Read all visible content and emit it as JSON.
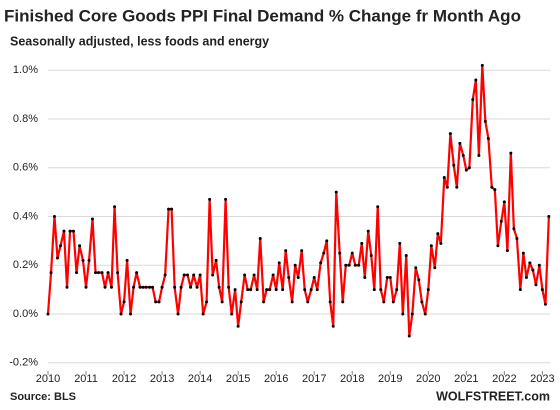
{
  "chart_data": {
    "type": "line",
    "title": "Finished Core Goods PPI Final Demand % Change fr Month Ago",
    "subtitle": "Seasonally adjusted, less foods and energy",
    "source": "Source: BLS",
    "watermark": "WOLFSTREET.com",
    "x": [
      2010,
      2010.08,
      2010.17,
      2010.25,
      2010.33,
      2010.42,
      2010.5,
      2010.58,
      2010.67,
      2010.75,
      2010.83,
      2010.92,
      2011,
      2011.08,
      2011.17,
      2011.25,
      2011.33,
      2011.42,
      2011.5,
      2011.58,
      2011.67,
      2011.75,
      2011.83,
      2011.92,
      2012,
      2012.08,
      2012.17,
      2012.25,
      2012.33,
      2012.42,
      2012.5,
      2012.58,
      2012.67,
      2012.75,
      2012.83,
      2012.92,
      2013,
      2013.08,
      2013.17,
      2013.25,
      2013.33,
      2013.42,
      2013.5,
      2013.58,
      2013.67,
      2013.75,
      2013.83,
      2013.92,
      2014,
      2014.08,
      2014.17,
      2014.25,
      2014.33,
      2014.42,
      2014.5,
      2014.58,
      2014.67,
      2014.75,
      2014.83,
      2014.92,
      2015,
      2015.08,
      2015.17,
      2015.25,
      2015.33,
      2015.42,
      2015.5,
      2015.58,
      2015.67,
      2015.75,
      2015.83,
      2015.92,
      2016,
      2016.08,
      2016.17,
      2016.25,
      2016.33,
      2016.42,
      2016.5,
      2016.58,
      2016.67,
      2016.75,
      2016.83,
      2016.92,
      2017,
      2017.08,
      2017.17,
      2017.25,
      2017.33,
      2017.42,
      2017.5,
      2017.58,
      2017.67,
      2017.75,
      2017.83,
      2017.92,
      2018,
      2018.08,
      2018.17,
      2018.25,
      2018.33,
      2018.42,
      2018.5,
      2018.58,
      2018.67,
      2018.75,
      2018.83,
      2018.92,
      2019,
      2019.08,
      2019.17,
      2019.25,
      2019.33,
      2019.42,
      2019.5,
      2019.58,
      2019.67,
      2019.75,
      2019.83,
      2019.92,
      2020,
      2020.08,
      2020.17,
      2020.25,
      2020.33,
      2020.42,
      2020.5,
      2020.58,
      2020.67,
      2020.75,
      2020.83,
      2020.92,
      2021,
      2021.08,
      2021.17,
      2021.25,
      2021.33,
      2021.42,
      2021.5,
      2021.58,
      2021.67,
      2021.75,
      2021.83,
      2021.92,
      2022,
      2022.08,
      2022.17,
      2022.25,
      2022.33,
      2022.42,
      2022.5,
      2022.58,
      2022.67,
      2022.75,
      2022.83,
      2022.92,
      2023,
      2023.08,
      2023.17
    ],
    "series": [
      {
        "color": "#ff0000",
        "marker_color": "#000000",
        "values": [
          0,
          0.17,
          0.4,
          0.23,
          0.28,
          0.34,
          0.11,
          0.34,
          0.34,
          0.17,
          0.28,
          0.22,
          0.11,
          0.22,
          0.39,
          0.17,
          0.17,
          0.17,
          0.11,
          0.17,
          0.11,
          0.44,
          0.17,
          0,
          0.05,
          0.22,
          0,
          0.11,
          0.17,
          0.11,
          0.11,
          0.11,
          0.11,
          0.11,
          0.05,
          0.05,
          0.11,
          0.16,
          0.43,
          0.43,
          0.11,
          0,
          0.11,
          0.16,
          0.16,
          0.11,
          0.16,
          0.11,
          0.16,
          0,
          0.05,
          0.47,
          0.16,
          0.22,
          0.11,
          0.05,
          0.47,
          0.11,
          0,
          0.1,
          -0.05,
          0.05,
          0.16,
          0.1,
          0.1,
          0.16,
          0.1,
          0.31,
          0.05,
          0.1,
          0.1,
          0.16,
          0.1,
          0.21,
          0.1,
          0.26,
          0.15,
          0.05,
          0.2,
          0.15,
          0.26,
          0.1,
          0.05,
          0.1,
          0.15,
          0.1,
          0.21,
          0.25,
          0.3,
          0.05,
          -0.05,
          0.5,
          0.25,
          0.05,
          0.2,
          0.2,
          0.25,
          0.2,
          0.2,
          0.29,
          0.15,
          0.34,
          0.24,
          0.1,
          0.44,
          0.1,
          0.05,
          0.15,
          0.15,
          0.05,
          0.1,
          0.29,
          0,
          0.24,
          -0.09,
          0,
          0.19,
          0.14,
          0.05,
          0,
          0.1,
          0.28,
          0.19,
          0.33,
          0.29,
          0.56,
          0.52,
          0.74,
          0.61,
          0.52,
          0.7,
          0.65,
          0.59,
          0.6,
          0.88,
          0.96,
          0.65,
          1.02,
          0.79,
          0.72,
          0.52,
          0.51,
          0.28,
          0.38,
          0.46,
          0.26,
          0.66,
          0.35,
          0.31,
          0.1,
          0.25,
          0.15,
          0.21,
          0.18,
          0.12,
          0.2,
          0.1,
          0.04,
          0.4
        ]
      }
    ],
    "xlim": [
      2010,
      2023.2
    ],
    "xticks": [
      2010,
      2011,
      2012,
      2013,
      2014,
      2015,
      2016,
      2017,
      2018,
      2019,
      2020,
      2021,
      2022,
      2023
    ],
    "ylim": [
      -0.25,
      1.05
    ],
    "yticks": [
      {
        "value": -0.2,
        "label": "-0.2%"
      },
      {
        "value": 0,
        "label": "0.0%"
      },
      {
        "value": 0.2,
        "label": "0.2%"
      },
      {
        "value": 0.4,
        "label": "0.4%"
      },
      {
        "value": 0.6,
        "label": "0.6%"
      },
      {
        "value": 0.8,
        "label": "0.8%"
      },
      {
        "value": 1.0,
        "label": "1.0%"
      }
    ],
    "grid": true
  }
}
